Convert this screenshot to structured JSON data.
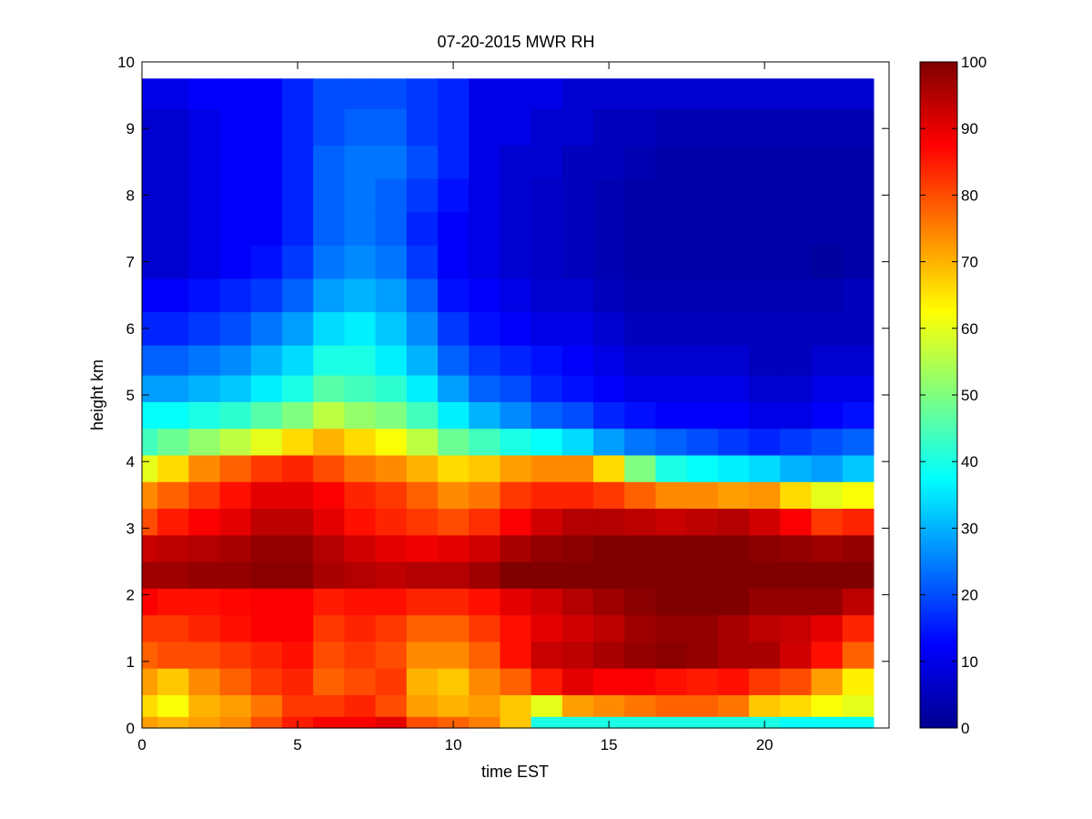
{
  "chart_data": {
    "type": "heatmap",
    "title": "07-20-2015 MWR RH",
    "xlabel": "time EST",
    "ylabel": "height km",
    "xlim": [
      0,
      24
    ],
    "ylim": [
      0,
      10
    ],
    "x_ticks": [
      "0",
      "5",
      "10",
      "15",
      "20"
    ],
    "y_ticks": [
      "0",
      "1",
      "2",
      "3",
      "4",
      "5",
      "6",
      "7",
      "8",
      "9",
      "10"
    ],
    "colorbar": {
      "colormap": "jet",
      "range": [
        0,
        100
      ],
      "ticks": [
        "0",
        "10",
        "20",
        "30",
        "40",
        "50",
        "60",
        "70",
        "80",
        "90",
        "100"
      ]
    },
    "x": [
      0,
      1,
      2,
      3,
      4,
      5,
      6,
      7,
      8,
      9,
      10,
      11,
      12,
      13,
      14,
      15,
      16,
      17,
      18,
      19,
      20,
      21,
      22,
      23
    ],
    "y": [
      0.05,
      0.3,
      0.7,
      1.1,
      1.5,
      1.9,
      2.3,
      2.7,
      3.1,
      3.5,
      3.9,
      4.3,
      4.7,
      5.1,
      5.5,
      6.0,
      6.5,
      7.0,
      7.5,
      8.0,
      8.5,
      9.0,
      9.6
    ],
    "values": [
      [
        72,
        70,
        72,
        74,
        80,
        85,
        88,
        88,
        90,
        80,
        78,
        75,
        68,
        40,
        40,
        40,
        40,
        40,
        40,
        40,
        40,
        38,
        38,
        38
      ],
      [
        66,
        62,
        70,
        72,
        76,
        82,
        82,
        84,
        80,
        72,
        70,
        72,
        68,
        60,
        72,
        74,
        76,
        78,
        78,
        76,
        68,
        66,
        62,
        60
      ],
      [
        72,
        68,
        74,
        78,
        82,
        84,
        78,
        80,
        82,
        70,
        68,
        74,
        78,
        85,
        90,
        88,
        88,
        86,
        85,
        86,
        82,
        80,
        72,
        64
      ],
      [
        78,
        80,
        80,
        82,
        84,
        86,
        80,
        82,
        80,
        74,
        74,
        78,
        86,
        93,
        94,
        96,
        98,
        99,
        98,
        96,
        96,
        92,
        86,
        78
      ],
      [
        82,
        82,
        84,
        86,
        88,
        88,
        82,
        84,
        82,
        78,
        78,
        82,
        86,
        90,
        92,
        94,
        97,
        98,
        98,
        96,
        94,
        93,
        90,
        84
      ],
      [
        88,
        86,
        86,
        87,
        88,
        88,
        85,
        86,
        86,
        84,
        84,
        86,
        90,
        92,
        95,
        97,
        99,
        100,
        100,
        100,
        98,
        98,
        98,
        94
      ],
      [
        97,
        97,
        98,
        98,
        99,
        99,
        96,
        95,
        94,
        95,
        95,
        97,
        100,
        100,
        100,
        100,
        100,
        100,
        100,
        100,
        100,
        100,
        100,
        100
      ],
      [
        93,
        94,
        95,
        96,
        98,
        98,
        95,
        92,
        90,
        89,
        90,
        92,
        96,
        98,
        99,
        100,
        100,
        100,
        100,
        100,
        99,
        98,
        97,
        98
      ],
      [
        80,
        85,
        88,
        90,
        94,
        94,
        90,
        86,
        84,
        82,
        80,
        83,
        88,
        92,
        95,
        95,
        94,
        93,
        94,
        95,
        92,
        88,
        82,
        84
      ],
      [
        74,
        78,
        82,
        86,
        90,
        90,
        88,
        84,
        82,
        78,
        74,
        76,
        82,
        84,
        84,
        82,
        78,
        74,
        74,
        72,
        73,
        66,
        60,
        62
      ],
      [
        60,
        66,
        74,
        78,
        82,
        84,
        80,
        76,
        74,
        70,
        66,
        68,
        72,
        74,
        74,
        66,
        50,
        40,
        38,
        36,
        34,
        30,
        28,
        32
      ],
      [
        44,
        48,
        52,
        56,
        60,
        66,
        70,
        66,
        62,
        56,
        48,
        44,
        40,
        38,
        34,
        28,
        24,
        22,
        20,
        18,
        16,
        18,
        20,
        22
      ],
      [
        38,
        38,
        40,
        42,
        46,
        50,
        56,
        52,
        50,
        44,
        36,
        30,
        26,
        22,
        20,
        16,
        14,
        12,
        12,
        12,
        10,
        10,
        12,
        14
      ],
      [
        28,
        28,
        30,
        32,
        36,
        40,
        46,
        44,
        42,
        36,
        28,
        22,
        20,
        16,
        14,
        12,
        10,
        10,
        10,
        10,
        8,
        8,
        10,
        10
      ],
      [
        22,
        22,
        24,
        26,
        30,
        34,
        40,
        40,
        36,
        30,
        22,
        18,
        16,
        14,
        12,
        10,
        8,
        8,
        8,
        8,
        6,
        6,
        8,
        8
      ],
      [
        16,
        16,
        18,
        20,
        24,
        28,
        34,
        36,
        32,
        26,
        18,
        14,
        12,
        10,
        10,
        8,
        6,
        6,
        6,
        6,
        6,
        6,
        6,
        6
      ],
      [
        12,
        12,
        14,
        16,
        18,
        22,
        28,
        30,
        28,
        22,
        14,
        12,
        10,
        8,
        8,
        6,
        5,
        5,
        5,
        5,
        5,
        5,
        5,
        6
      ],
      [
        8,
        8,
        10,
        12,
        14,
        18,
        24,
        26,
        24,
        18,
        12,
        10,
        8,
        7,
        6,
        5,
        4,
        4,
        4,
        4,
        4,
        4,
        3,
        4
      ],
      [
        8,
        8,
        10,
        12,
        12,
        16,
        22,
        24,
        22,
        16,
        12,
        10,
        8,
        7,
        6,
        5,
        4,
        4,
        4,
        4,
        4,
        4,
        4,
        4
      ],
      [
        8,
        8,
        10,
        12,
        12,
        16,
        22,
        24,
        22,
        18,
        14,
        10,
        8,
        7,
        6,
        5,
        4,
        4,
        4,
        4,
        4,
        4,
        4,
        4
      ],
      [
        8,
        8,
        10,
        12,
        12,
        16,
        22,
        24,
        24,
        20,
        16,
        10,
        8,
        8,
        6,
        6,
        5,
        4,
        4,
        4,
        4,
        4,
        4,
        4
      ],
      [
        8,
        8,
        10,
        12,
        12,
        16,
        20,
        22,
        22,
        18,
        16,
        10,
        10,
        8,
        8,
        6,
        6,
        5,
        5,
        5,
        5,
        5,
        5,
        5
      ],
      [
        10,
        10,
        12,
        12,
        12,
        16,
        20,
        20,
        20,
        18,
        16,
        10,
        10,
        10,
        8,
        8,
        8,
        8,
        8,
        8,
        8,
        8,
        8,
        8
      ]
    ]
  }
}
